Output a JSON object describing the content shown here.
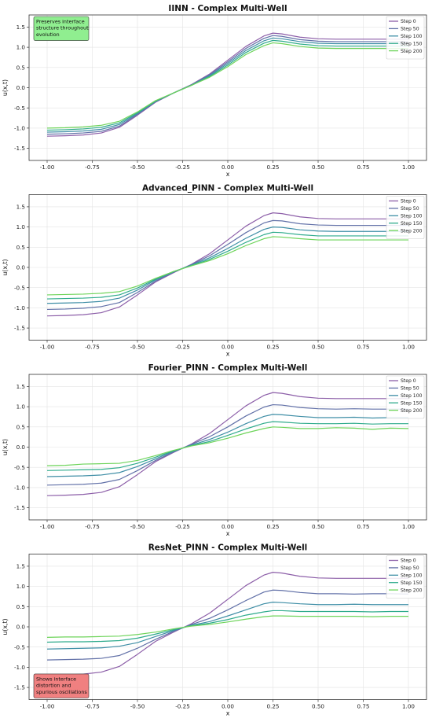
{
  "chart_data": [
    {
      "type": "line",
      "title": "IINN - Complex Multi-Well",
      "xlabel": "x",
      "ylabel": "u(x,t)",
      "xlim": [
        -1.1,
        1.1
      ],
      "ylim": [
        -1.8,
        1.8
      ],
      "xticks": [
        "-1.00",
        "-0.75",
        "-0.50",
        "-0.25",
        "0.00",
        "0.25",
        "0.50",
        "0.75",
        "1.00"
      ],
      "yticks": [
        "-1.5",
        "-1.0",
        "-0.5",
        "0.0",
        "0.5",
        "1.0",
        "1.5"
      ],
      "grid": true,
      "legend_position": "top-right",
      "annotation": {
        "text": [
          "Preserves interface",
          "structure throughout",
          "evolution"
        ],
        "position": "top-left",
        "bg": "#90ee90"
      },
      "x": [
        -1.0,
        -0.9,
        -0.8,
        -0.7,
        -0.6,
        -0.5,
        -0.4,
        -0.3,
        -0.2,
        -0.1,
        0.0,
        0.1,
        0.2,
        0.25,
        0.3,
        0.4,
        0.5,
        0.6,
        0.7,
        0.8,
        0.9,
        1.0
      ],
      "series": [
        {
          "name": "Step 0",
          "color": "#8c5ea8",
          "values": [
            -1.2,
            -1.19,
            -1.17,
            -1.12,
            -0.98,
            -0.68,
            -0.36,
            -0.13,
            0.08,
            0.34,
            0.68,
            1.02,
            1.28,
            1.35,
            1.33,
            1.25,
            1.21,
            1.2,
            1.2,
            1.2,
            1.2,
            1.2
          ]
        },
        {
          "name": "Step 50",
          "color": "#6271a8",
          "values": [
            -1.15,
            -1.14,
            -1.12,
            -1.08,
            -0.95,
            -0.66,
            -0.35,
            -0.13,
            0.07,
            0.32,
            0.64,
            0.97,
            1.22,
            1.29,
            1.27,
            1.19,
            1.15,
            1.14,
            1.14,
            1.14,
            1.14,
            1.14
          ]
        },
        {
          "name": "Step 100",
          "color": "#3f8ea6",
          "values": [
            -1.1,
            -1.09,
            -1.07,
            -1.03,
            -0.91,
            -0.64,
            -0.34,
            -0.13,
            0.07,
            0.3,
            0.6,
            0.92,
            1.16,
            1.23,
            1.21,
            1.14,
            1.1,
            1.09,
            1.09,
            1.09,
            1.09,
            1.09
          ]
        },
        {
          "name": "Step 150",
          "color": "#2fab8c",
          "values": [
            -1.05,
            -1.04,
            -1.02,
            -0.98,
            -0.87,
            -0.62,
            -0.33,
            -0.13,
            0.06,
            0.28,
            0.56,
            0.87,
            1.1,
            1.17,
            1.15,
            1.08,
            1.04,
            1.03,
            1.03,
            1.03,
            1.03,
            1.03
          ]
        },
        {
          "name": "Step 200",
          "color": "#6ed45a",
          "values": [
            -1.0,
            -0.99,
            -0.97,
            -0.93,
            -0.83,
            -0.6,
            -0.32,
            -0.13,
            0.06,
            0.26,
            0.52,
            0.82,
            1.04,
            1.11,
            1.09,
            1.02,
            0.98,
            0.97,
            0.97,
            0.97,
            0.97,
            0.97
          ]
        }
      ]
    },
    {
      "type": "line",
      "title": "Advanced_PINN - Complex Multi-Well",
      "xlabel": "x",
      "ylabel": "u(x,t)",
      "xlim": [
        -1.1,
        1.1
      ],
      "ylim": [
        -1.8,
        1.8
      ],
      "xticks": [
        "-1.00",
        "-0.75",
        "-0.50",
        "-0.25",
        "0.00",
        "0.25",
        "0.50",
        "0.75",
        "1.00"
      ],
      "yticks": [
        "-1.5",
        "-1.0",
        "-0.5",
        "0.0",
        "0.5",
        "1.0",
        "1.5"
      ],
      "grid": true,
      "legend_position": "top-right",
      "x": [
        -1.0,
        -0.9,
        -0.8,
        -0.7,
        -0.6,
        -0.5,
        -0.4,
        -0.3,
        -0.2,
        -0.1,
        0.0,
        0.1,
        0.2,
        0.25,
        0.3,
        0.4,
        0.5,
        0.6,
        0.7,
        0.8,
        0.9,
        1.0
      ],
      "series": [
        {
          "name": "Step 0",
          "color": "#8c5ea8",
          "values": [
            -1.2,
            -1.19,
            -1.17,
            -1.12,
            -0.98,
            -0.68,
            -0.36,
            -0.13,
            0.08,
            0.34,
            0.68,
            1.02,
            1.28,
            1.35,
            1.33,
            1.25,
            1.21,
            1.2,
            1.2,
            1.2,
            1.2,
            1.2
          ]
        },
        {
          "name": "Step 50",
          "color": "#6271a8",
          "values": [
            -1.04,
            -1.03,
            -1.01,
            -0.97,
            -0.87,
            -0.62,
            -0.34,
            -0.12,
            0.07,
            0.29,
            0.57,
            0.86,
            1.1,
            1.16,
            1.15,
            1.08,
            1.05,
            1.04,
            1.04,
            1.04,
            1.04,
            1.04
          ]
        },
        {
          "name": "Step 100",
          "color": "#3f8ea6",
          "values": [
            -0.89,
            -0.88,
            -0.87,
            -0.84,
            -0.76,
            -0.56,
            -0.31,
            -0.11,
            0.06,
            0.24,
            0.47,
            0.72,
            0.94,
            1.0,
            0.99,
            0.93,
            0.9,
            0.89,
            0.89,
            0.89,
            0.89,
            0.89
          ]
        },
        {
          "name": "Step 150",
          "color": "#2fab8c",
          "values": [
            -0.78,
            -0.77,
            -0.76,
            -0.74,
            -0.68,
            -0.51,
            -0.29,
            -0.1,
            0.05,
            0.2,
            0.4,
            0.62,
            0.81,
            0.87,
            0.86,
            0.81,
            0.78,
            0.78,
            0.78,
            0.78,
            0.78,
            0.78
          ]
        },
        {
          "name": "Step 200",
          "color": "#6ed45a",
          "values": [
            -0.68,
            -0.67,
            -0.66,
            -0.64,
            -0.6,
            -0.46,
            -0.27,
            -0.1,
            0.04,
            0.17,
            0.34,
            0.54,
            0.71,
            0.76,
            0.75,
            0.71,
            0.68,
            0.68,
            0.68,
            0.68,
            0.68,
            0.68
          ]
        }
      ]
    },
    {
      "type": "line",
      "title": "Fourier_PINN - Complex Multi-Well",
      "xlabel": "x",
      "ylabel": "u(x,t)",
      "xlim": [
        -1.1,
        1.1
      ],
      "ylim": [
        -1.8,
        1.8
      ],
      "xticks": [
        "-1.00",
        "-0.75",
        "-0.50",
        "-0.25",
        "0.00",
        "0.25",
        "0.50",
        "0.75",
        "1.00"
      ],
      "yticks": [
        "-1.5",
        "-1.0",
        "-0.5",
        "0.0",
        "0.5",
        "1.0",
        "1.5"
      ],
      "grid": true,
      "legend_position": "top-right",
      "x": [
        -1.0,
        -0.9,
        -0.8,
        -0.7,
        -0.6,
        -0.5,
        -0.4,
        -0.3,
        -0.2,
        -0.1,
        0.0,
        0.1,
        0.2,
        0.25,
        0.3,
        0.4,
        0.5,
        0.6,
        0.7,
        0.8,
        0.9,
        1.0
      ],
      "series": [
        {
          "name": "Step 0",
          "color": "#8c5ea8",
          "values": [
            -1.2,
            -1.19,
            -1.17,
            -1.12,
            -0.98,
            -0.68,
            -0.36,
            -0.13,
            0.08,
            0.34,
            0.68,
            1.02,
            1.28,
            1.35,
            1.33,
            1.25,
            1.21,
            1.2,
            1.2,
            1.2,
            1.2,
            1.2
          ]
        },
        {
          "name": "Step 50",
          "color": "#6271a8",
          "values": [
            -0.94,
            -0.93,
            -0.92,
            -0.89,
            -0.8,
            -0.58,
            -0.33,
            -0.12,
            0.07,
            0.26,
            0.5,
            0.77,
            0.99,
            1.05,
            1.04,
            0.98,
            0.95,
            0.94,
            0.95,
            0.94,
            0.94,
            0.94
          ]
        },
        {
          "name": "Step 100",
          "color": "#3f8ea6",
          "values": [
            -0.73,
            -0.72,
            -0.71,
            -0.69,
            -0.63,
            -0.48,
            -0.29,
            -0.1,
            0.05,
            0.19,
            0.37,
            0.58,
            0.76,
            0.81,
            0.8,
            0.76,
            0.73,
            0.73,
            0.74,
            0.72,
            0.73,
            0.73
          ]
        },
        {
          "name": "Step 150",
          "color": "#2fab8c",
          "values": [
            -0.58,
            -0.57,
            -0.56,
            -0.55,
            -0.51,
            -0.4,
            -0.25,
            -0.09,
            0.04,
            0.14,
            0.29,
            0.45,
            0.59,
            0.63,
            0.62,
            0.59,
            0.58,
            0.58,
            0.59,
            0.57,
            0.58,
            0.58
          ]
        },
        {
          "name": "Step 200",
          "color": "#6ed45a",
          "values": [
            -0.46,
            -0.45,
            -0.42,
            -0.41,
            -0.4,
            -0.33,
            -0.21,
            -0.08,
            0.03,
            0.11,
            0.22,
            0.35,
            0.46,
            0.5,
            0.49,
            0.46,
            0.46,
            0.48,
            0.47,
            0.44,
            0.47,
            0.46
          ]
        }
      ]
    },
    {
      "type": "line",
      "title": "ResNet_PINN - Complex Multi-Well",
      "xlabel": "x",
      "ylabel": "u(x,t)",
      "xlim": [
        -1.1,
        1.1
      ],
      "ylim": [
        -1.8,
        1.8
      ],
      "xticks": [
        "-1.00",
        "-0.75",
        "-0.50",
        "-0.25",
        "0.00",
        "0.25",
        "0.50",
        "0.75",
        "1.00"
      ],
      "yticks": [
        "-1.5",
        "-1.0",
        "-0.5",
        "0.0",
        "0.5",
        "1.0",
        "1.5"
      ],
      "grid": true,
      "legend_position": "top-right",
      "annotation": {
        "text": [
          "Shows interface",
          "distortion and",
          "spurious oscillations"
        ],
        "position": "bottom-left",
        "bg": "#f08080"
      },
      "x": [
        -1.0,
        -0.9,
        -0.8,
        -0.7,
        -0.6,
        -0.5,
        -0.4,
        -0.3,
        -0.2,
        -0.1,
        0.0,
        0.1,
        0.2,
        0.25,
        0.3,
        0.4,
        0.5,
        0.6,
        0.7,
        0.8,
        0.9,
        1.0
      ],
      "series": [
        {
          "name": "Step 0",
          "color": "#8c5ea8",
          "values": [
            -1.2,
            -1.19,
            -1.17,
            -1.12,
            -0.98,
            -0.68,
            -0.36,
            -0.13,
            0.08,
            0.34,
            0.68,
            1.02,
            1.28,
            1.35,
            1.33,
            1.25,
            1.21,
            1.2,
            1.2,
            1.2,
            1.2,
            1.2
          ]
        },
        {
          "name": "Step 50",
          "color": "#6271a8",
          "values": [
            -0.82,
            -0.81,
            -0.8,
            -0.78,
            -0.71,
            -0.53,
            -0.31,
            -0.11,
            0.06,
            0.21,
            0.42,
            0.65,
            0.86,
            0.91,
            0.9,
            0.85,
            0.82,
            0.82,
            0.81,
            0.82,
            0.82,
            0.81
          ]
        },
        {
          "name": "Step 100",
          "color": "#3f8ea6",
          "values": [
            -0.55,
            -0.54,
            -0.53,
            -0.52,
            -0.48,
            -0.39,
            -0.24,
            -0.09,
            0.04,
            0.13,
            0.27,
            0.42,
            0.57,
            0.61,
            0.6,
            0.57,
            0.55,
            0.55,
            0.56,
            0.55,
            0.55,
            0.55
          ]
        },
        {
          "name": "Step 150",
          "color": "#2fab8c",
          "values": [
            -0.38,
            -0.37,
            -0.37,
            -0.36,
            -0.34,
            -0.28,
            -0.18,
            -0.07,
            0.03,
            0.09,
            0.18,
            0.29,
            0.37,
            0.4,
            0.4,
            0.38,
            0.38,
            0.38,
            0.38,
            0.37,
            0.38,
            0.38
          ]
        },
        {
          "name": "Step 200",
          "color": "#6ed45a",
          "values": [
            -0.26,
            -0.25,
            -0.25,
            -0.24,
            -0.23,
            -0.19,
            -0.13,
            -0.05,
            0.02,
            0.06,
            0.12,
            0.19,
            0.25,
            0.27,
            0.27,
            0.26,
            0.26,
            0.26,
            0.26,
            0.25,
            0.26,
            0.26
          ]
        }
      ]
    }
  ]
}
